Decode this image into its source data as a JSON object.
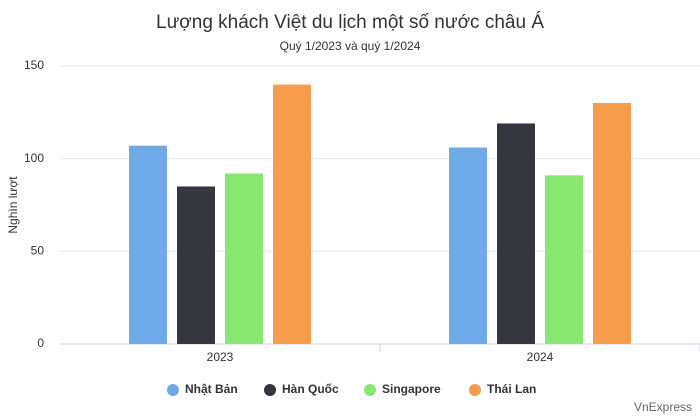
{
  "chart_data": {
    "type": "bar",
    "title": "Lượng khách Việt du lịch một số nước châu Á",
    "subtitle": "Quý 1/2023 và quý 1/2024",
    "y_label": "Nghìn lượt",
    "credit": "VnExpress",
    "categories": [
      "2023",
      "2024"
    ],
    "series": [
      {
        "name": "Nhật Bản",
        "color": "#6ea9e8",
        "values": [
          107,
          106
        ]
      },
      {
        "name": "Hàn Quốc",
        "color": "#35363d",
        "values": [
          85,
          119
        ]
      },
      {
        "name": "Singapore",
        "color": "#88e76f",
        "values": [
          92,
          91
        ]
      },
      {
        "name": "Thái Lan",
        "color": "#f69c4a",
        "values": [
          140,
          130
        ]
      }
    ],
    "ylim": [
      0,
      150
    ],
    "yticks": [
      0,
      50,
      100,
      150
    ],
    "grid": true,
    "legend": "bottom"
  }
}
